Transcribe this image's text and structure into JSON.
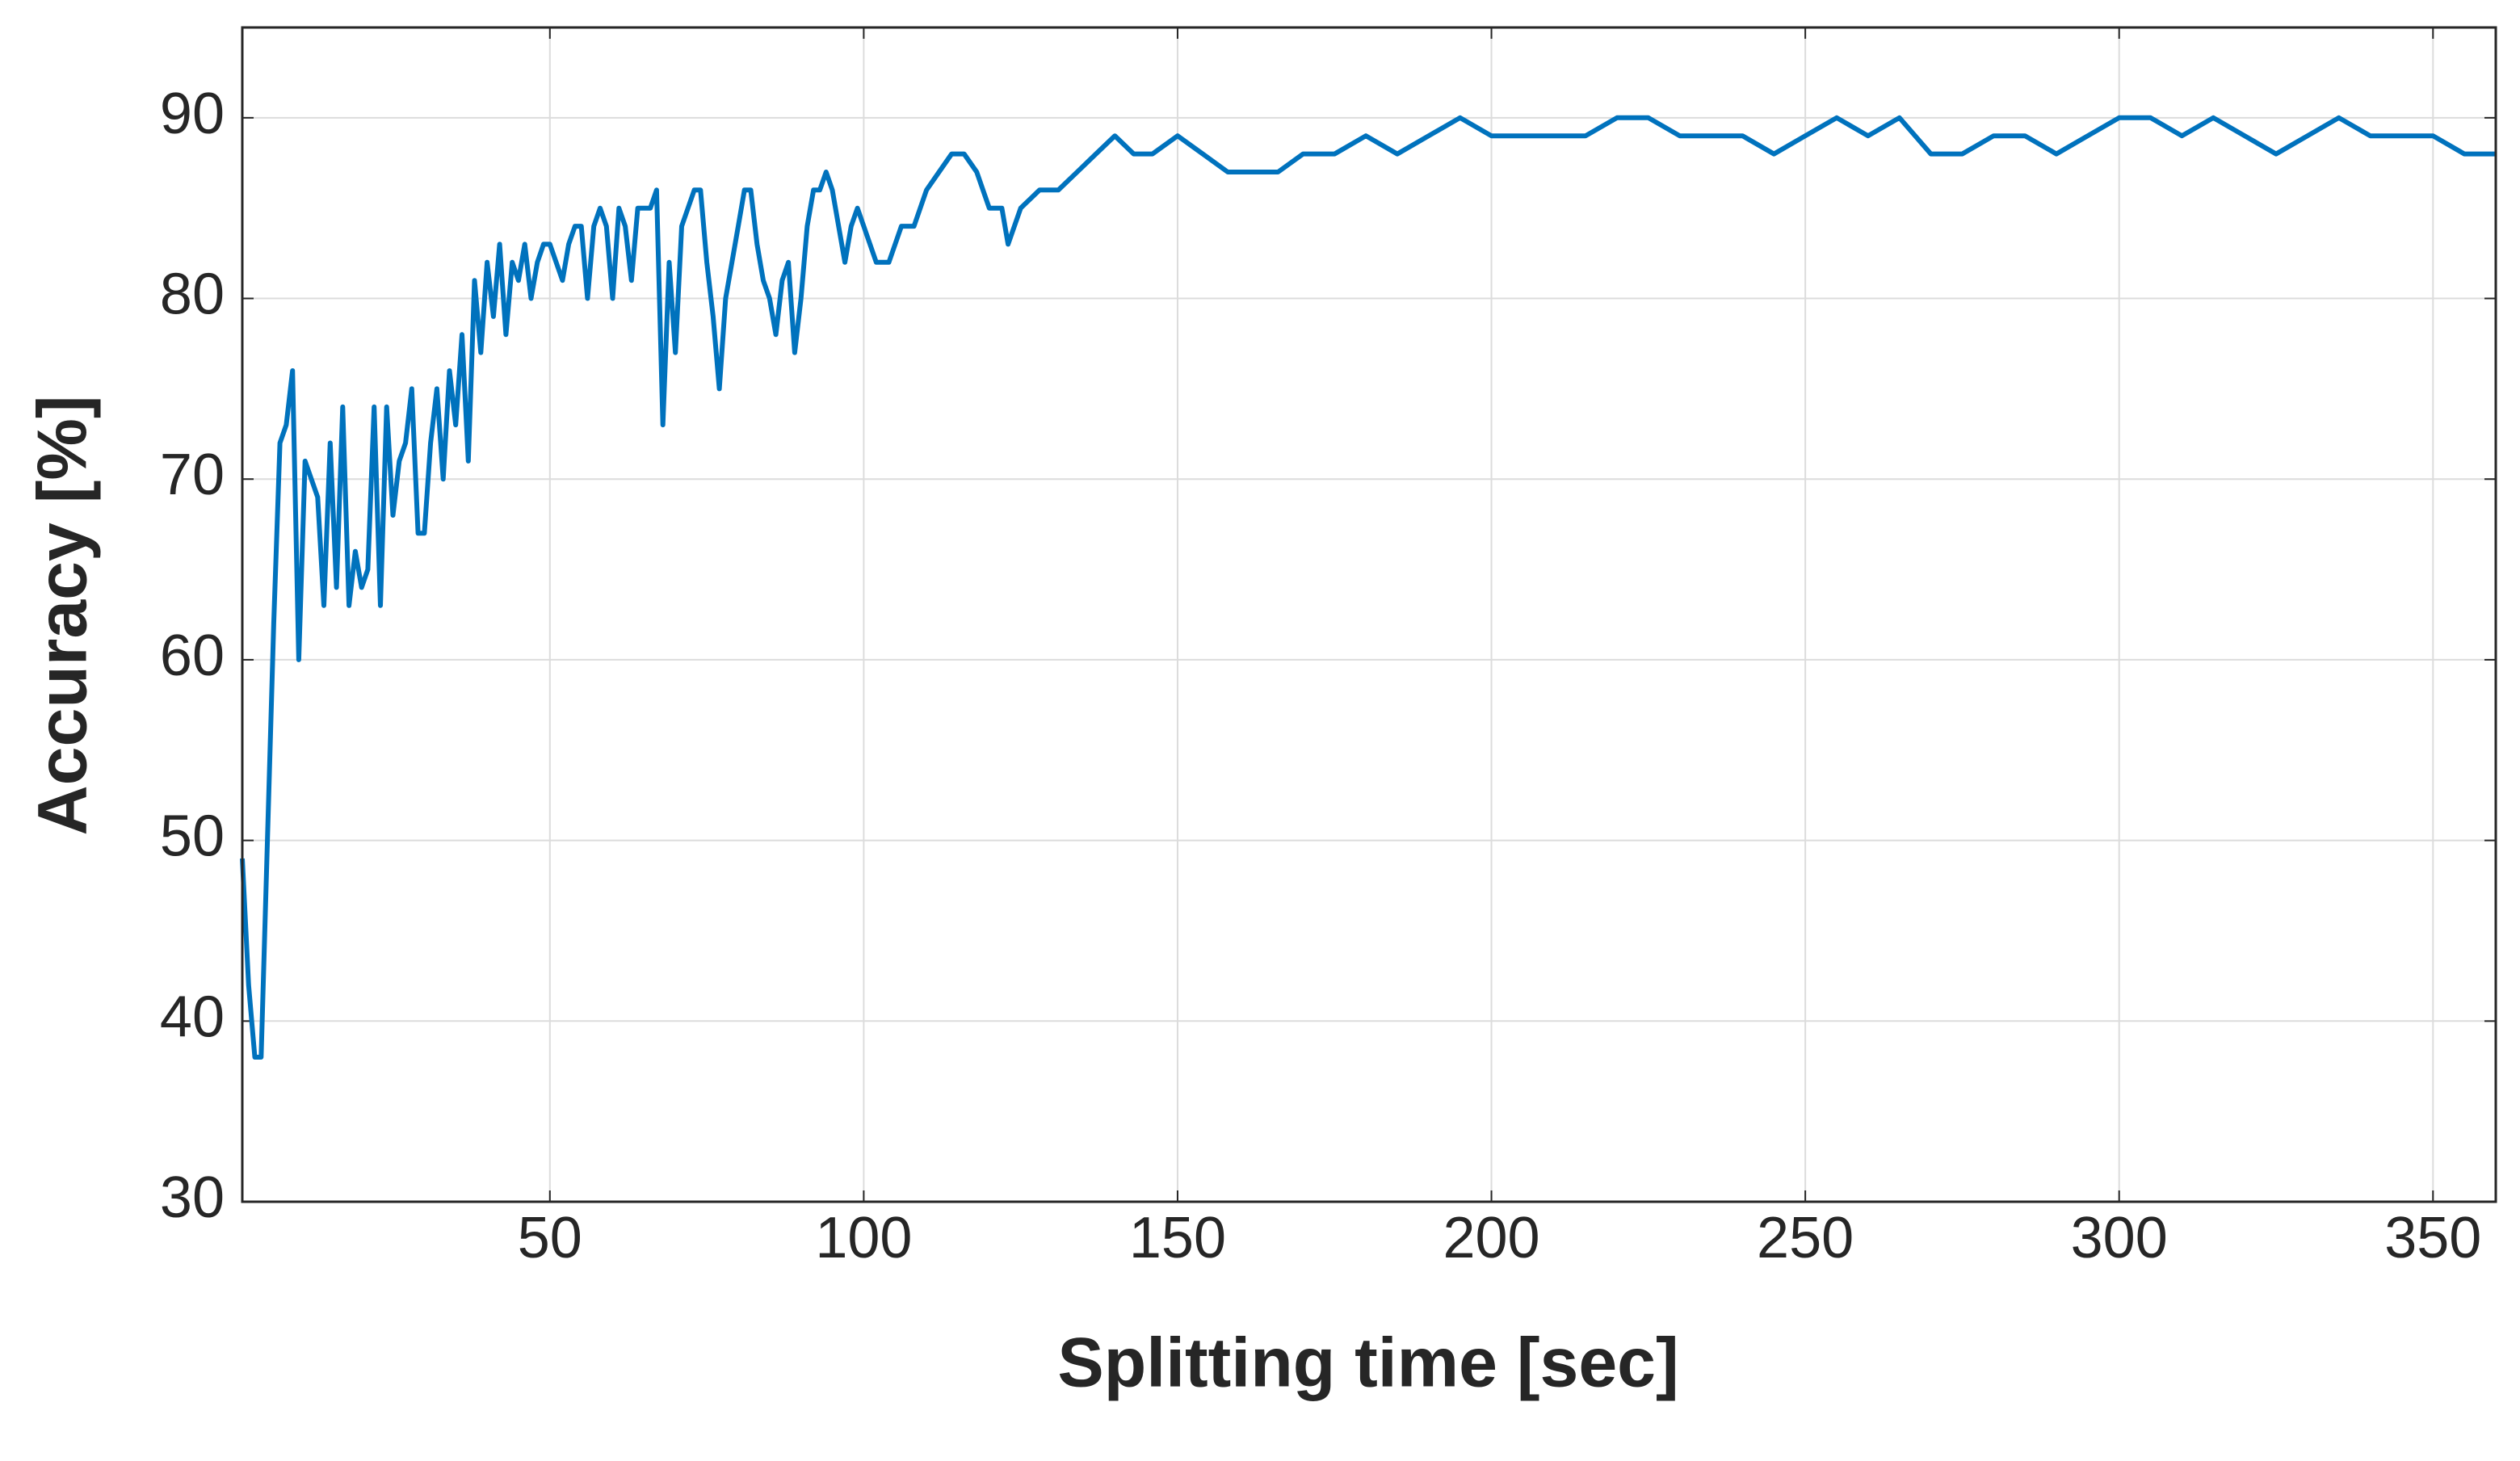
{
  "chart_data": {
    "type": "line",
    "x_label": "Splitting time [sec]",
    "y_label": "Accuracy [%]",
    "xlim": [
      1,
      360
    ],
    "ylim": [
      30,
      95
    ],
    "xticks": [
      50,
      100,
      150,
      200,
      250,
      300,
      350
    ],
    "yticks": [
      30,
      40,
      50,
      60,
      70,
      80,
      90
    ],
    "grid": true,
    "x": [
      1,
      2,
      3,
      4,
      5,
      6,
      7,
      8,
      9,
      10,
      11,
      12,
      13,
      14,
      15,
      16,
      17,
      18,
      19,
      20,
      21,
      22,
      23,
      24,
      25,
      26,
      27,
      28,
      29,
      30,
      31,
      32,
      33,
      34,
      35,
      36,
      37,
      38,
      39,
      40,
      41,
      42,
      43,
      44,
      45,
      46,
      47,
      48,
      49,
      50,
      51,
      52,
      53,
      54,
      55,
      56,
      57,
      58,
      59,
      60,
      61,
      62,
      63,
      64,
      65,
      66,
      67,
      68,
      69,
      70,
      71,
      72,
      73,
      74,
      75,
      76,
      77,
      78,
      79,
      80,
      81,
      82,
      83,
      84,
      85,
      86,
      87,
      88,
      89,
      90,
      91,
      92,
      93,
      94,
      95,
      96,
      97,
      98,
      99,
      100,
      102,
      104,
      106,
      108,
      110,
      112,
      114,
      116,
      118,
      120,
      122,
      123,
      125,
      128,
      131,
      134,
      137,
      140,
      143,
      146,
      150,
      154,
      158,
      162,
      166,
      170,
      175,
      180,
      185,
      190,
      195,
      200,
      205,
      210,
      215,
      220,
      225,
      230,
      235,
      240,
      245,
      250,
      255,
      260,
      265,
      270,
      275,
      280,
      285,
      290,
      295,
      300,
      305,
      310,
      315,
      320,
      325,
      330,
      335,
      340,
      345,
      350,
      355,
      360
    ],
    "series": [
      {
        "name": "Accuracy",
        "color": "#0072bd",
        "values": [
          49,
          42,
          38,
          38,
          50,
          62,
          72,
          73,
          76,
          60,
          71,
          70,
          69,
          63,
          72,
          64,
          74,
          63,
          66,
          64,
          65,
          74,
          63,
          74,
          68,
          71,
          72,
          75,
          67,
          67,
          72,
          75,
          70,
          76,
          73,
          78,
          71,
          81,
          77,
          82,
          79,
          83,
          78,
          82,
          81,
          83,
          80,
          82,
          83,
          83,
          82,
          81,
          83,
          84,
          84,
          80,
          84,
          85,
          84,
          80,
          85,
          84,
          81,
          85,
          85,
          85,
          86,
          73,
          82,
          77,
          84,
          85,
          86,
          86,
          82,
          79,
          75,
          80,
          82,
          84,
          86,
          86,
          83,
          81,
          80,
          78,
          81,
          82,
          77,
          80,
          84,
          86,
          86,
          87,
          86,
          84,
          82,
          84,
          85,
          84,
          82,
          82,
          84,
          84,
          86,
          87,
          88,
          88,
          87,
          85,
          85,
          83,
          85,
          86,
          86,
          87,
          88,
          89,
          88,
          88,
          89,
          88,
          87,
          87,
          87,
          88,
          88,
          89,
          88,
          89,
          90,
          89,
          89,
          89,
          89,
          90,
          90,
          89,
          89,
          89,
          88,
          89,
          90,
          89,
          90,
          88,
          88,
          89,
          89,
          88,
          89,
          90,
          90,
          89,
          90,
          89,
          88,
          89,
          90,
          89,
          89,
          89,
          88,
          88
        ]
      }
    ]
  }
}
